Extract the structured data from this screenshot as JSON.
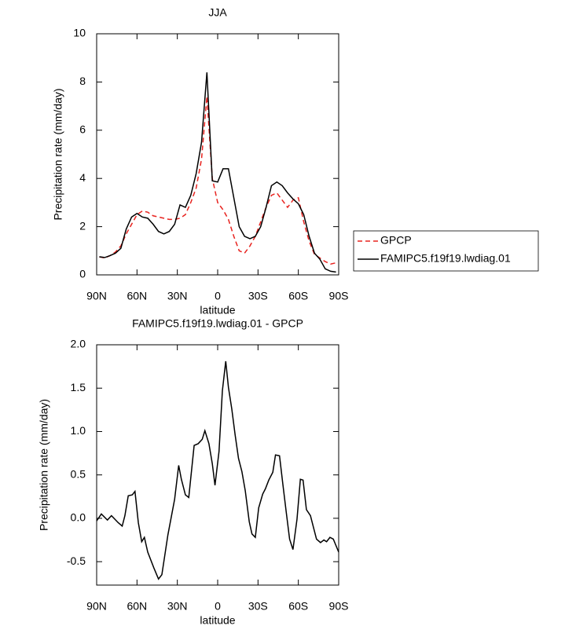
{
  "chart_data": [
    {
      "type": "line",
      "title": "JJA",
      "xlabel": "latitude",
      "ylabel": "Precipitation rate (mm/day)",
      "xlim": [
        90,
        -90
      ],
      "ylim": [
        0,
        10
      ],
      "xticks": [
        {
          "value": 90,
          "label": "90N"
        },
        {
          "value": 60,
          "label": "60N"
        },
        {
          "value": 30,
          "label": "30N"
        },
        {
          "value": 0,
          "label": "0"
        },
        {
          "value": -30,
          "label": "30S"
        },
        {
          "value": -60,
          "label": "60S"
        },
        {
          "value": -90,
          "label": "90S"
        }
      ],
      "yticks": [
        0,
        2,
        4,
        6,
        8,
        10
      ],
      "legend": "right",
      "x": [
        88,
        84,
        80,
        76,
        72,
        68,
        64,
        60,
        56,
        52,
        48,
        44,
        40,
        36,
        32,
        28,
        24,
        20,
        16,
        12,
        8,
        4,
        0,
        -4,
        -8,
        -12,
        -16,
        -20,
        -24,
        -28,
        -32,
        -36,
        -40,
        -44,
        -48,
        -52,
        -56,
        -60,
        -64,
        -68,
        -72,
        -76,
        -80,
        -84,
        -88
      ],
      "series": [
        {
          "name": "GPCP",
          "color": "#e8231f",
          "line_style": "dashed",
          "values": [
            0.75,
            0.7,
            0.8,
            0.95,
            1.2,
            1.7,
            2.1,
            2.5,
            2.65,
            2.6,
            2.45,
            2.4,
            2.35,
            2.3,
            2.3,
            2.35,
            2.5,
            3.0,
            3.6,
            4.8,
            7.4,
            4.0,
            3.0,
            2.7,
            2.3,
            1.6,
            1.0,
            0.9,
            1.2,
            1.6,
            2.2,
            2.8,
            3.3,
            3.4,
            3.1,
            2.8,
            3.1,
            3.2,
            2.2,
            1.4,
            0.85,
            0.7,
            0.55,
            0.45,
            0.5
          ]
        },
        {
          "name": "FAMIPC5.f19f19.lwdiag.01",
          "color": "#000000",
          "line_style": "solid",
          "values": [
            0.75,
            0.72,
            0.8,
            0.9,
            1.1,
            1.9,
            2.4,
            2.55,
            2.4,
            2.35,
            2.1,
            1.8,
            1.7,
            1.8,
            2.1,
            2.9,
            2.8,
            3.3,
            4.2,
            5.5,
            8.4,
            3.9,
            3.85,
            4.4,
            4.4,
            3.2,
            2.0,
            1.6,
            1.5,
            1.6,
            2.0,
            2.8,
            3.7,
            3.85,
            3.7,
            3.4,
            3.15,
            2.95,
            2.5,
            1.6,
            0.9,
            0.65,
            0.25,
            0.15,
            0.12
          ]
        }
      ]
    },
    {
      "type": "line",
      "title": "FAMIPC5.f19f19.lwdiag.01 - GPCP",
      "xlabel": "latitude",
      "ylabel": "Precipitation rate (mm/day)",
      "xlim": [
        90,
        -90
      ],
      "ylim": [
        -0.77,
        2.0
      ],
      "xticks": [
        {
          "value": 90,
          "label": "90N"
        },
        {
          "value": 60,
          "label": "60N"
        },
        {
          "value": 30,
          "label": "30N"
        },
        {
          "value": 0,
          "label": "0"
        },
        {
          "value": -30,
          "label": "30S"
        },
        {
          "value": -60,
          "label": "60S"
        },
        {
          "value": -90,
          "label": "90S"
        }
      ],
      "yticks": [
        {
          "value": 2,
          "label": "2.0"
        },
        1.5,
        {
          "value": 1,
          "label": "1.0"
        },
        0.5,
        {
          "value": 0,
          "label": "0.0"
        },
        -0.5
      ],
      "x": [
        90,
        86.5,
        82,
        79,
        74,
        71,
        69,
        66.5,
        63.5,
        61.5,
        59,
        56.5,
        54.5,
        52,
        47.5,
        44,
        41.5,
        37,
        32,
        29,
        27,
        24,
        21.5,
        17.5,
        14.5,
        11.5,
        9.5,
        6.5,
        4,
        2,
        -1,
        -3.5,
        -6,
        -8,
        -10.5,
        -13,
        -15.5,
        -18,
        -20.5,
        -23.5,
        -25.5,
        -28,
        -30.5,
        -33.5,
        -35.5,
        -38,
        -41,
        -43,
        -46,
        -48.5,
        -51,
        -53.5,
        -56,
        -59,
        -61.5,
        -63.5,
        -66,
        -69,
        -71.5,
        -73.5,
        -76.5,
        -79,
        -81,
        -83.5,
        -86,
        -90
      ],
      "series": [
        {
          "color": "#000000",
          "line_style": "solid",
          "values": [
            -0.03,
            0.05,
            -0.02,
            0.03,
            -0.05,
            -0.09,
            0.03,
            0.26,
            0.27,
            0.31,
            -0.05,
            -0.27,
            -0.22,
            -0.39,
            -0.57,
            -0.7,
            -0.65,
            -0.19,
            0.22,
            0.61,
            0.45,
            0.27,
            0.24,
            0.84,
            0.86,
            0.91,
            1.01,
            0.86,
            0.63,
            0.38,
            0.77,
            1.47,
            1.81,
            1.51,
            1.26,
            0.96,
            0.69,
            0.54,
            0.32,
            -0.04,
            -0.18,
            -0.22,
            0.12,
            0.28,
            0.34,
            0.44,
            0.53,
            0.73,
            0.72,
            0.39,
            0.07,
            -0.24,
            -0.36,
            -0.01,
            0.45,
            0.44,
            0.1,
            0.03,
            -0.12,
            -0.24,
            -0.28,
            -0.25,
            -0.27,
            -0.22,
            -0.24,
            -0.39
          ]
        }
      ]
    }
  ]
}
